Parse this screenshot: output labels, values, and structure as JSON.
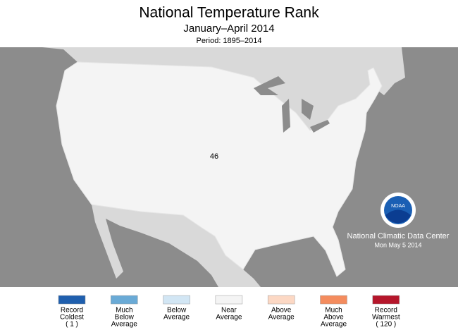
{
  "header": {
    "title": "National Temperature Rank",
    "subtitle": "January–April 2014",
    "period": "Period: 1895–2014"
  },
  "map": {
    "rank": 46
  },
  "credit": {
    "logo": "NOAA",
    "center": "National Climatic Data Center",
    "date": "Mon May  5 2014"
  },
  "legend": [
    {
      "lines": [
        "Record",
        "Coldest",
        "( 1 )"
      ],
      "color": "#1f5fae"
    },
    {
      "lines": [
        "Much",
        "Below",
        "Average"
      ],
      "color": "#6aaad6"
    },
    {
      "lines": [
        "Below",
        "Average"
      ],
      "color": "#d2e6f4"
    },
    {
      "lines": [
        "Near",
        "Average"
      ],
      "color": "#f4f4f4"
    },
    {
      "lines": [
        "Above",
        "Average"
      ],
      "color": "#fcd8c4"
    },
    {
      "lines": [
        "Much",
        "Above",
        "Average"
      ],
      "color": "#f48c5e"
    },
    {
      "lines": [
        "Record",
        "Warmest",
        "( 120 )"
      ],
      "color": "#b5162b"
    }
  ]
}
